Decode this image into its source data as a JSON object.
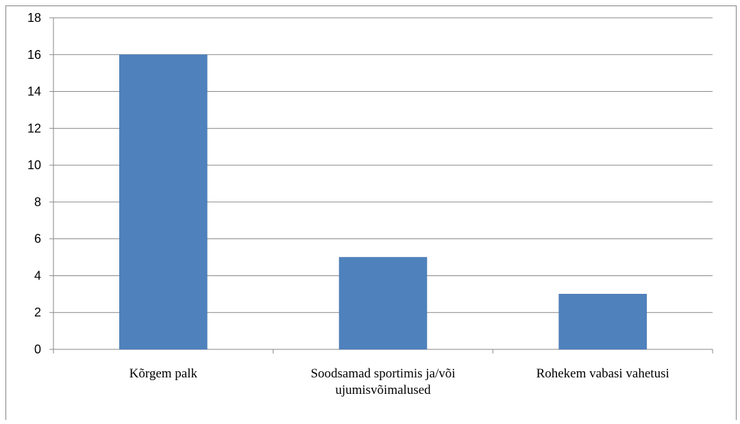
{
  "chart_data": {
    "type": "bar",
    "categories": [
      [
        "Kõrgem palk"
      ],
      [
        "Soodsamad sportimis ja/või",
        "ujumisvõimalused"
      ],
      [
        "Rohekem vabasi vahetusi"
      ]
    ],
    "values": [
      16,
      5,
      3
    ],
    "yticks": [
      "0",
      "2",
      "4",
      "6",
      "8",
      "10",
      "12",
      "14",
      "16",
      "18"
    ],
    "ylim": [
      0,
      18
    ],
    "grid": true,
    "legend": "none",
    "colors": {
      "bar": "#4f81bd",
      "bar_edge": "#3a6ea5",
      "grid": "#868686",
      "axis": "#868686"
    }
  }
}
